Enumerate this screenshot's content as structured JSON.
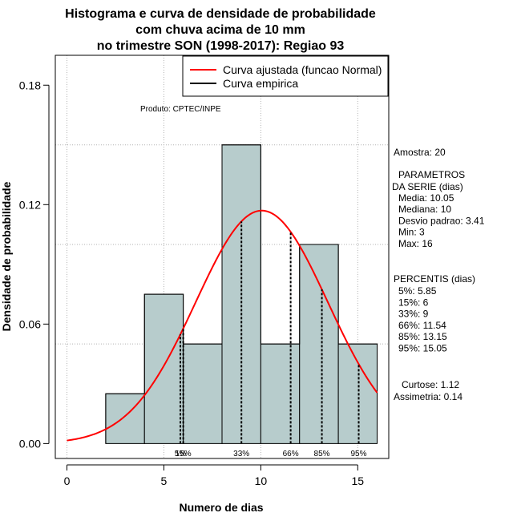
{
  "chart_data": {
    "type": "bar",
    "title_lines": [
      "Histograma e curva de densidade de probabilidade",
      "com chuva acima de 10 mm",
      "no trimestre SON (1998-2017): Regiao 93"
    ],
    "xlabel": "Numero de dias",
    "ylabel": "Densidade de probabilidade",
    "xlim": [
      -0.6,
      16.6
    ],
    "ylim": [
      -0.0075,
      0.195
    ],
    "x_ticks": [
      0,
      5,
      10,
      15
    ],
    "y_ticks": [
      0.0,
      0.06,
      0.12,
      0.18
    ],
    "y_tick_labels": [
      "0.00",
      "0.06",
      "0.12",
      "0.18"
    ],
    "grid": true,
    "grid_y": [
      0.05,
      0.1,
      0.15
    ],
    "bins": [
      {
        "start": 2,
        "end": 4,
        "density": 0.025
      },
      {
        "start": 4,
        "end": 6,
        "density": 0.075
      },
      {
        "start": 6,
        "end": 8,
        "density": 0.05
      },
      {
        "start": 8,
        "end": 10,
        "density": 0.15
      },
      {
        "start": 10,
        "end": 12,
        "density": 0.05
      },
      {
        "start": 12,
        "end": 14,
        "density": 0.1
      },
      {
        "start": 14,
        "end": 16,
        "density": 0.05
      }
    ],
    "bar_color": "#b7cccc",
    "fitted_curve": {
      "name": "Curva ajustada (funcao Normal)",
      "mean": 10.05,
      "sd": 3.41,
      "x_range": [
        0,
        16
      ],
      "color": "#ff0000"
    },
    "empirical_curve": {
      "name": "Curva empirica",
      "color": "#000000"
    },
    "legend_position": "top-right",
    "percentiles": [
      {
        "label": "5%",
        "value": 5.85
      },
      {
        "label": "15%",
        "value": 6
      },
      {
        "label": "33%",
        "value": 9
      },
      {
        "label": "66%",
        "value": 11.54
      },
      {
        "label": "85%",
        "value": 13.15
      },
      {
        "label": "95%",
        "value": 15.05
      }
    ],
    "percentile_marks": [
      {
        "label": "5%",
        "x": 5.85
      },
      {
        "label": "15%",
        "x": 6
      },
      {
        "label": "33%",
        "x": 9
      },
      {
        "label": "66%",
        "x": 11.54
      },
      {
        "label": "85%",
        "x": 13.15
      },
      {
        "label": "95%",
        "x": 15.05
      }
    ],
    "annotation": "Produto: CPTEC/INPE"
  },
  "side_panel": {
    "sample": "Amostra: 20",
    "params_title": "PARAMETROS",
    "params_subtitle": "DA SERIE (dias)",
    "params": [
      "Media: 10.05",
      "Mediana: 10",
      "Desvio padrao: 3.41",
      "Min: 3",
      "Max: 16"
    ],
    "percentis_title": "PERCENTIS (dias)",
    "percentis": [
      "5%: 5.85",
      "15%: 6",
      "33%: 9",
      "66%: 11.54",
      "85%: 13.15",
      "95%: 15.05"
    ],
    "curtose": "Curtose: 1.12",
    "assimetria": "Assimetria: 0.14"
  }
}
